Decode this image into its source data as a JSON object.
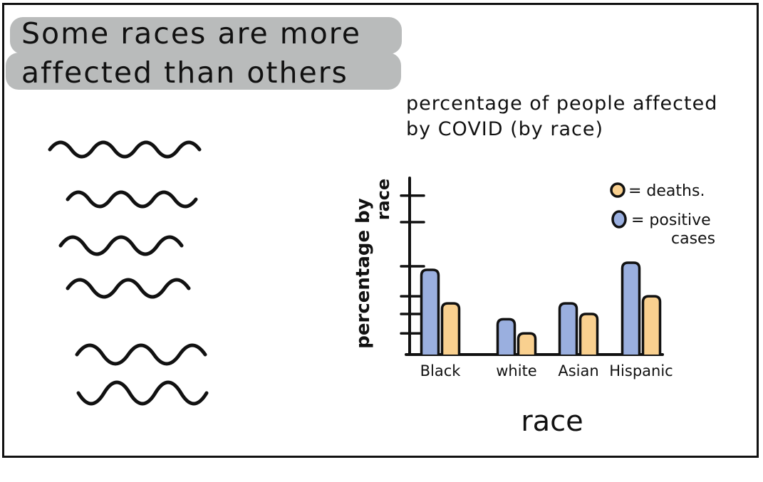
{
  "headline": {
    "line1": "Some races are more",
    "line2": "affected than others"
  },
  "colors": {
    "positive_cases": "#9aafdf",
    "deaths": "#f9d08f",
    "ink": "#111111",
    "highlight": "#b9bbbb"
  },
  "chart_data": {
    "type": "bar",
    "title_line1": "percentage of people affected",
    "title_line2": "by COVID (by race)",
    "xlabel": "race",
    "ylabel_line1": "percentage by",
    "ylabel_line2": "race",
    "categories": [
      "Black",
      "white",
      "Asian",
      "Hispanic"
    ],
    "series": [
      {
        "name": "positive cases",
        "values": [
          4.8,
          2.0,
          2.9,
          5.2
        ]
      },
      {
        "name": "deaths",
        "values": [
          2.9,
          1.2,
          2.3,
          3.3
        ]
      }
    ],
    "ylim": [
      0,
      10
    ],
    "legend": [
      {
        "label": "= deaths.",
        "series": "deaths"
      },
      {
        "label_line1": "= positive",
        "label_line2": "cases",
        "series": "positive cases"
      }
    ],
    "legend_position": "top-right"
  }
}
